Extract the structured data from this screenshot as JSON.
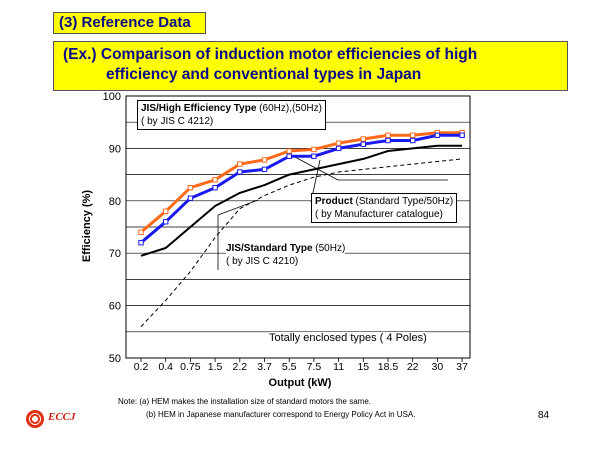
{
  "header": {
    "section_label": "(3) Reference Data",
    "title_line1": "(Ex.) Comparison of induction motor efficiencies of high",
    "title_line2": "efficiency and conventional types in Japan"
  },
  "chart_data": {
    "type": "line",
    "ylabel": "Efficiency (%)",
    "xlabel": "Output (kW)",
    "ylim": [
      50,
      100
    ],
    "yticks": [
      "50",
      "60",
      "70",
      "80",
      "90",
      "100"
    ],
    "categories": [
      "0.2",
      "0.4",
      "0.75",
      "1.5",
      "2.2",
      "3.7",
      "5.5",
      "7.5",
      "11",
      "15",
      "18.5",
      "22",
      "30",
      "37"
    ],
    "grid": true,
    "series": [
      {
        "name": "JIS/High Efficiency Type (60Hz)",
        "color": "#ff6a1a",
        "style": "solid",
        "marker": "square",
        "values": [
          74.0,
          78.0,
          82.5,
          84.0,
          87.0,
          87.8,
          89.5,
          89.8,
          91.0,
          91.8,
          92.5,
          92.5,
          93.0,
          93.0
        ]
      },
      {
        "name": "JIS/High Efficiency Type (50Hz)",
        "color": "#1a1aee",
        "style": "solid",
        "marker": "square",
        "values": [
          72.0,
          76.0,
          80.5,
          82.5,
          85.5,
          86.0,
          88.5,
          88.5,
          90.0,
          90.8,
          91.5,
          91.5,
          92.5,
          92.5
        ]
      },
      {
        "name": "Product (Standard Type/50Hz)",
        "color": "#000000",
        "style": "solid",
        "marker": "none",
        "values": [
          69.5,
          71.0,
          75.0,
          79.0,
          81.5,
          83.0,
          85.0,
          86.0,
          87.0,
          88.0,
          89.5,
          90.0,
          90.5,
          90.5
        ]
      },
      {
        "name": "JIS/Standard Type (50Hz)",
        "color": "#000000",
        "style": "dashed",
        "marker": "none",
        "values": [
          56.0,
          61.0,
          66.5,
          73.0,
          78.5,
          81.0,
          83.0,
          84.5,
          85.5,
          86.0,
          86.5,
          87.0,
          87.5,
          88.0
        ]
      }
    ],
    "annotations": {
      "high_eff_bold": "JIS/High Efficiency Type",
      "high_eff_rest": " (60Hz),(50Hz)",
      "high_eff_sub": "( by JIS C 4212)",
      "product_bold": "Product",
      "product_rest": " (Standard Type/50Hz)",
      "product_sub": "( by Manufacturer catalogue)",
      "std_bold": "JIS/Standard Type",
      "std_rest": " (50Hz)",
      "std_sub": "( by JIS C 4210)",
      "enclosure": "Totally enclosed types ( 4 Poles)"
    }
  },
  "notes": {
    "line1": "Note: (a) HEM makes the installation size of standard motors the same.",
    "line2": "(b) HEM in Japanese manufacturer correspond to Energy Policy Act in USA."
  },
  "footer": {
    "logo_text": "ECCJ",
    "page_number": "84"
  }
}
